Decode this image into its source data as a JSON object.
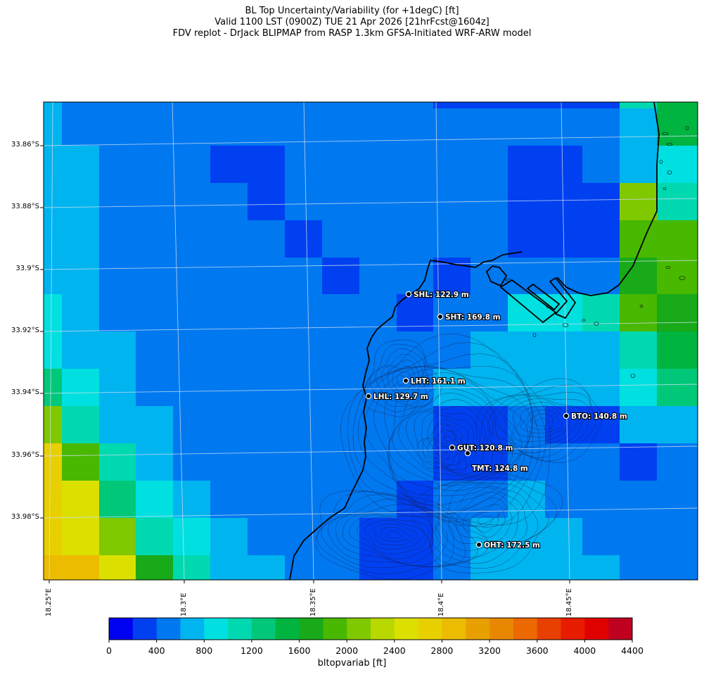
{
  "title": {
    "line1": "BL Top Uncertainty/Variability (for +1degC) [ft]",
    "line2": "Valid 1100 LST (0900Z) TUE 21 Apr 2026 [21hrFcst@1604z]",
    "line3": "FDV replot - DrJack BLIPMAP from RASP 1.3km GFSA-Initiated WRF-ARW model"
  },
  "axes": {
    "lat_ticks": [
      "33.86°S",
      "33.88°S",
      "33.9°S",
      "33.92°S",
      "33.94°S",
      "33.96°S",
      "33.98°S"
    ],
    "lon_ticks": [
      "18.25°E",
      "18.3°E",
      "18.35°E",
      "18.4°E",
      "18.45°E"
    ]
  },
  "colorbar": {
    "label": "bltopvariab [ft]",
    "ticks": [
      "0",
      "400",
      "800",
      "1200",
      "1600",
      "2000",
      "2400",
      "2800",
      "3200",
      "3600",
      "4000",
      "4400"
    ],
    "colors": [
      "#0000f0",
      "#0040f0",
      "#0078f0",
      "#00b4f0",
      "#00e0e0",
      "#00d8b0",
      "#00c878",
      "#00b440",
      "#18aa18",
      "#48b800",
      "#80c800",
      "#b8d800",
      "#dce000",
      "#e8d000",
      "#ecbc00",
      "#e8a000",
      "#e88800",
      "#ec6800",
      "#e84000",
      "#e81c00",
      "#e00000",
      "#c00020"
    ]
  },
  "stations": [
    {
      "code": "SHL",
      "label": "SHL: 122.9 m"
    },
    {
      "code": "SHT",
      "label": "SHT: 169.8 m"
    },
    {
      "code": "LHT",
      "label": "LHT: 161.1 m"
    },
    {
      "code": "LHL",
      "label": "LHL: 129.7 m"
    },
    {
      "code": "BTO",
      "label": "BTO: 140.8 m"
    },
    {
      "code": "GUT",
      "label": "GUT: 120.8 m"
    },
    {
      "code": "TMT",
      "label": "TMT: 124.8 m"
    },
    {
      "code": "OHT",
      "label": "OHT: 172.5 m"
    }
  ]
}
